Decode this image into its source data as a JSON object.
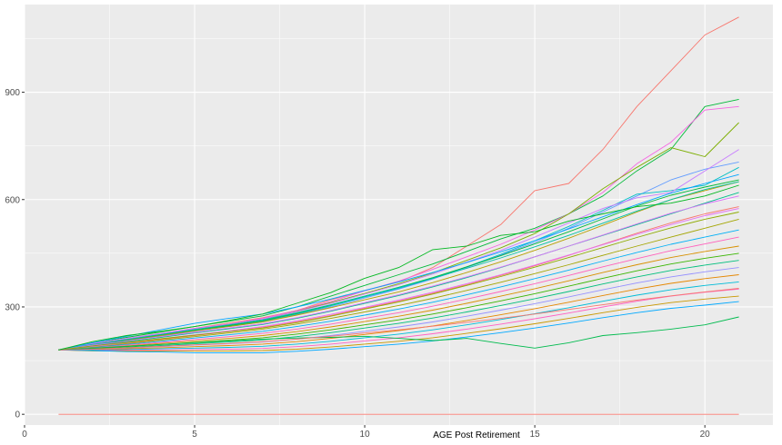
{
  "chart_data": {
    "type": "line",
    "title": "",
    "xlabel": "AGE Post Retirement",
    "ylabel": "",
    "xlim": [
      0,
      22
    ],
    "ylim": [
      -30,
      1145
    ],
    "x_ticks": [
      0,
      5,
      10,
      15,
      20
    ],
    "y_ticks": [
      0,
      300,
      600,
      900
    ],
    "grid": true,
    "legend": "none",
    "background": "#EBEBEB",
    "x": [
      1,
      2,
      3,
      4,
      5,
      6,
      7,
      8,
      9,
      10,
      11,
      12,
      13,
      14,
      15,
      16,
      17,
      18,
      19,
      20,
      21
    ],
    "series": [
      {
        "color": "#F8766D",
        "values": [
          0,
          0,
          0,
          0,
          0,
          0,
          0,
          0,
          0,
          0,
          0,
          0,
          0,
          0,
          0,
          0,
          0,
          0,
          0,
          0,
          0
        ]
      },
      {
        "color": "#F8766D",
        "values": [
          180,
          195,
          210,
          225,
          240,
          255,
          270,
          290,
          320,
          345,
          370,
          410,
          470,
          530,
          625,
          645,
          740,
          860,
          960,
          1060,
          1110
        ]
      },
      {
        "color": "#00BA38",
        "values": [
          180,
          200,
          215,
          230,
          245,
          260,
          275,
          300,
          330,
          360,
          390,
          420,
          455,
          490,
          520,
          560,
          610,
          680,
          740,
          860,
          880
        ]
      },
      {
        "color": "#F564E3",
        "values": [
          180,
          198,
          212,
          226,
          240,
          252,
          268,
          290,
          315,
          345,
          372,
          405,
          440,
          475,
          515,
          560,
          620,
          700,
          760,
          850,
          860
        ]
      },
      {
        "color": "#7CAE00",
        "values": [
          180,
          196,
          210,
          224,
          238,
          250,
          265,
          288,
          312,
          338,
          365,
          395,
          430,
          465,
          505,
          560,
          630,
          690,
          745,
          720,
          815
        ]
      },
      {
        "color": "#619CFF",
        "values": [
          180,
          190,
          205,
          218,
          232,
          245,
          258,
          278,
          300,
          325,
          350,
          378,
          410,
          445,
          480,
          520,
          565,
          610,
          655,
          685,
          705
        ]
      },
      {
        "color": "#00BFC4",
        "values": [
          180,
          192,
          206,
          220,
          234,
          246,
          260,
          280,
          303,
          328,
          352,
          380,
          412,
          447,
          485,
          525,
          570,
          615,
          625,
          640,
          690
        ]
      },
      {
        "color": "#C77CFF",
        "values": [
          180,
          197,
          211,
          225,
          239,
          252,
          266,
          287,
          310,
          336,
          362,
          392,
          425,
          458,
          495,
          535,
          575,
          605,
          620,
          680,
          740
        ]
      },
      {
        "color": "#B79F00",
        "values": [
          180,
          194,
          207,
          220,
          233,
          245,
          258,
          277,
          298,
          320,
          342,
          368,
          396,
          426,
          458,
          492,
          528,
          565,
          600,
          625,
          650
        ]
      },
      {
        "color": "#00BA38",
        "values": [
          180,
          193,
          208,
          222,
          236,
          248,
          262,
          282,
          305,
          330,
          355,
          382,
          412,
          443,
          476,
          510,
          546,
          582,
          612,
          635,
          655
        ]
      },
      {
        "color": "#F8766D",
        "values": [
          180,
          188,
          198,
          209,
          220,
          231,
          243,
          258,
          276,
          296,
          316,
          338,
          362,
          388,
          415,
          444,
          475,
          506,
          535,
          560,
          580
        ]
      },
      {
        "color": "#00C08B",
        "values": [
          180,
          191,
          203,
          215,
          227,
          239,
          251,
          268,
          288,
          310,
          332,
          356,
          382,
          410,
          440,
          470,
          500,
          530,
          560,
          590,
          620
        ]
      },
      {
        "color": "#E76BF3",
        "values": [
          180,
          189,
          200,
          211,
          222,
          233,
          245,
          261,
          279,
          299,
          319,
          341,
          365,
          390,
          417,
          445,
          474,
          503,
          530,
          555,
          575
        ]
      },
      {
        "color": "#A3A500",
        "values": [
          180,
          187,
          197,
          207,
          217,
          227,
          238,
          252,
          268,
          286,
          304,
          324,
          346,
          369,
          393,
          418,
          444,
          470,
          495,
          520,
          545
        ]
      },
      {
        "color": "#00B0F6",
        "values": [
          180,
          186,
          195,
          204,
          213,
          222,
          232,
          245,
          260,
          277,
          294,
          313,
          334,
          356,
          379,
          403,
          428,
          452,
          475,
          495,
          515
        ]
      },
      {
        "color": "#FF62BC",
        "values": [
          180,
          185,
          193,
          201,
          209,
          217,
          226,
          238,
          252,
          268,
          284,
          302,
          322,
          343,
          365,
          388,
          412,
          435,
          457,
          476,
          495
        ]
      },
      {
        "color": "#D89000",
        "values": [
          180,
          184,
          191,
          198,
          205,
          212,
          220,
          231,
          244,
          259,
          274,
          291,
          310,
          330,
          351,
          373,
          396,
          418,
          438,
          455,
          470
        ]
      },
      {
        "color": "#39B600",
        "values": [
          180,
          183,
          189,
          195,
          201,
          207,
          214,
          224,
          236,
          250,
          264,
          280,
          298,
          317,
          337,
          358,
          380,
          401,
          420,
          436,
          450
        ]
      },
      {
        "color": "#00BF7D",
        "values": [
          180,
          182,
          187,
          192,
          197,
          202,
          208,
          217,
          228,
          241,
          254,
          269,
          286,
          304,
          323,
          343,
          364,
          384,
          402,
          417,
          430
        ]
      },
      {
        "color": "#9590FF",
        "values": [
          180,
          181,
          185,
          189,
          193,
          197,
          202,
          210,
          220,
          232,
          244,
          258,
          274,
          291,
          309,
          328,
          348,
          367,
          384,
          398,
          410
        ]
      },
      {
        "color": "#E58700",
        "values": [
          180,
          180,
          183,
          186,
          189,
          192,
          196,
          203,
          212,
          223,
          234,
          247,
          262,
          278,
          295,
          313,
          332,
          350,
          366,
          379,
          390
        ]
      },
      {
        "color": "#00BCD8",
        "values": [
          180,
          179,
          181,
          183,
          185,
          187,
          190,
          196,
          204,
          214,
          224,
          236,
          250,
          265,
          281,
          298,
          316,
          333,
          348,
          360,
          370
        ]
      },
      {
        "color": "#FF61C3",
        "values": [
          180,
          178,
          179,
          180,
          181,
          182,
          184,
          189,
          196,
          205,
          214,
          225,
          238,
          252,
          267,
          283,
          300,
          316,
          330,
          341,
          350
        ]
      },
      {
        "color": "#C99800",
        "values": [
          180,
          177,
          177,
          177,
          177,
          177,
          178,
          182,
          188,
          196,
          204,
          214,
          226,
          239,
          253,
          268,
          284,
          299,
          312,
          322,
          330
        ]
      },
      {
        "color": "#00A9FF",
        "values": [
          180,
          178,
          175,
          174,
          172,
          172,
          172,
          176,
          182,
          189,
          196,
          205,
          216,
          228,
          241,
          255,
          270,
          284,
          296,
          305,
          315
        ]
      },
      {
        "color": "#00A5FF",
        "values": [
          180,
          200,
          218,
          236,
          254,
          268,
          280,
          300,
          322,
          346,
          370,
          396,
          424,
          454,
          485,
          518,
          552,
          586,
          618,
          645,
          670
        ]
      },
      {
        "color": "#00C1A3",
        "values": [
          180,
          195,
          209,
          223,
          237,
          250,
          264,
          284,
          306,
          330,
          354,
          380,
          408,
          437,
          468,
          500,
          534,
          568,
          600,
          628,
          650
        ]
      },
      {
        "color": "#DC71FA",
        "values": [
          180,
          193,
          205,
          217,
          229,
          241,
          253,
          270,
          290,
          312,
          334,
          358,
          384,
          411,
          440,
          470,
          501,
          532,
          562,
          588,
          610
        ]
      },
      {
        "color": "#8EAB00",
        "values": [
          180,
          191,
          201,
          211,
          221,
          231,
          241,
          256,
          274,
          294,
          314,
          336,
          360,
          385,
          411,
          438,
          466,
          494,
          521,
          545,
          565
        ]
      },
      {
        "color": "#00BB4E",
        "values": [
          180,
          185,
          190,
          195,
          200,
          205,
          210,
          213,
          215,
          218,
          212,
          206,
          212,
          198,
          185,
          200,
          220,
          228,
          238,
          250,
          272
        ]
      },
      {
        "color": "#F8766D",
        "values": [
          180,
          182,
          186,
          190,
          194,
          198,
          203,
          210,
          218,
          227,
          236,
          246,
          257,
          268,
          280,
          293,
          306,
          319,
          331,
          342,
          352
        ]
      },
      {
        "color": "#00B81F",
        "values": [
          180,
          203,
          220,
          232,
          245,
          262,
          280,
          310,
          340,
          380,
          410,
          460,
          470,
          500,
          510,
          540,
          560,
          580,
          590,
          610,
          640
        ]
      }
    ]
  }
}
